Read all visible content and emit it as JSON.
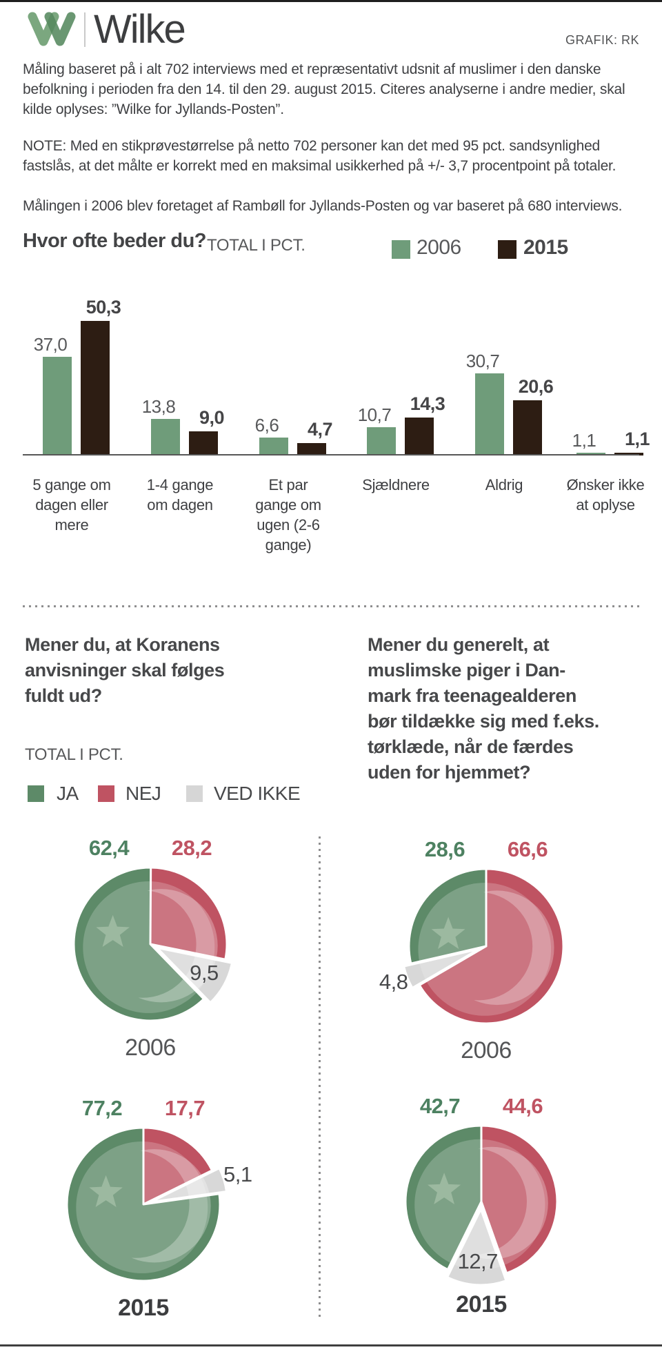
{
  "header": {
    "brand": "Wilke",
    "credit": "GRAFIK: RK",
    "logo_icon": "wilke-w-logo",
    "logo_green_light": "#7ba77f",
    "logo_green_dark": "#55895f"
  },
  "intro": {
    "p1": "Måling baseret på i alt 702 interviews med et repræsentativt udsnit af muslimer i den danske befolkning i perioden fra den 14. til den 29. august 2015. Citeres analyserne i andre medier, skal kilde oplyses: ”Wilke for Jyllands-Posten”.",
    "p2": "NOTE: Med en stikprøvestørrelse på netto 702 personer kan det med 95 pct. sandsynlighed fastslås, at det målte er korrekt med en maksimal usikkerhed på +/- 3,7 procentpoint på totaler.",
    "p3": "Målingen i 2006 blev foretaget af Rambøll for Jyllands-Posten og var baseret på 680 interviews."
  },
  "colors": {
    "bar_green": "#6f9c7a",
    "bar_dark": "#2d1d13",
    "pie_green": "#5d8a68",
    "pie_red": "#bf5362",
    "pie_gray": "#d8d8d8",
    "star_green": "#9cb9a0",
    "text_dark": "#3f4043",
    "text_muted": "#58595b"
  },
  "chart_data": [
    {
      "type": "bar",
      "title": "Hvor ofte beder du?",
      "subtitle": "TOTAL I PCT.",
      "legend_position": "top-right",
      "categories": [
        "5 gange om dagen eller mere",
        "1-4 gange om dagen",
        "Et par gange om ugen (2-6 gange)",
        "Sjældnere",
        "Aldrig",
        "Ønsker ikke at oplyse"
      ],
      "series": [
        {
          "name": "2006",
          "color": "#6f9c7a",
          "values": [
            37.0,
            13.8,
            6.6,
            10.7,
            30.7,
            1.1
          ]
        },
        {
          "name": "2015",
          "color": "#2d1d13",
          "values": [
            50.3,
            9.0,
            4.7,
            14.3,
            20.6,
            1.1
          ]
        }
      ],
      "value_labels": [
        [
          "37,0",
          "13,8",
          "6,6",
          "10,7",
          "30,7",
          "1,1"
        ],
        [
          "50,3",
          "9,0",
          "4,7",
          "14,3",
          "20,6",
          "1,1"
        ]
      ],
      "ylabel": "pct.",
      "ylim": [
        0,
        55
      ],
      "grid": false
    },
    {
      "type": "pie",
      "title": "Mener du, at Koranens\nanvisninger skal følges\nfuldt ud?",
      "subtitle": "TOTAL I PCT.",
      "legend": [
        {
          "label": "JA",
          "color": "#5d8a68"
        },
        {
          "label": "NEJ",
          "color": "#bf5362"
        },
        {
          "label": "VED IKKE",
          "color": "#d8d8d8"
        }
      ],
      "pies": [
        {
          "year": "2006",
          "values": {
            "ja": 62.4,
            "nej": 28.2,
            "ved_ikke": 9.5
          },
          "display": {
            "ja": "62,4",
            "nej": "28,2",
            "ved_ikke": "9,5"
          }
        },
        {
          "year": "2015",
          "values": {
            "ja": 77.2,
            "nej": 17.7,
            "ved_ikke": 5.1
          },
          "display": {
            "ja": "77,2",
            "nej": "17,7",
            "ved_ikke": "5,1"
          }
        }
      ]
    },
    {
      "type": "pie",
      "title": "Mener du generelt, at\nmuslimske piger i Dan-\nmark fra teenagealderen\nbør tildække sig med f.eks.\ntørklæde, når de færdes\nuden for hjemmet?",
      "subtitle": "TOTAL I PCT.",
      "legend": [
        {
          "label": "JA",
          "color": "#5d8a68"
        },
        {
          "label": "NEJ",
          "color": "#bf5362"
        },
        {
          "label": "VED IKKE",
          "color": "#d8d8d8"
        }
      ],
      "pies": [
        {
          "year": "2006",
          "values": {
            "ja": 28.6,
            "nej": 66.6,
            "ved_ikke": 4.8
          },
          "display": {
            "ja": "28,6",
            "nej": "66,6",
            "ved_ikke": "4,8"
          }
        },
        {
          "year": "2015",
          "values": {
            "ja": 42.7,
            "nej": 44.6,
            "ved_ikke": 12.7
          },
          "display": {
            "ja": "42,7",
            "nej": "44,6",
            "ved_ikke": "12,7"
          }
        }
      ]
    }
  ]
}
